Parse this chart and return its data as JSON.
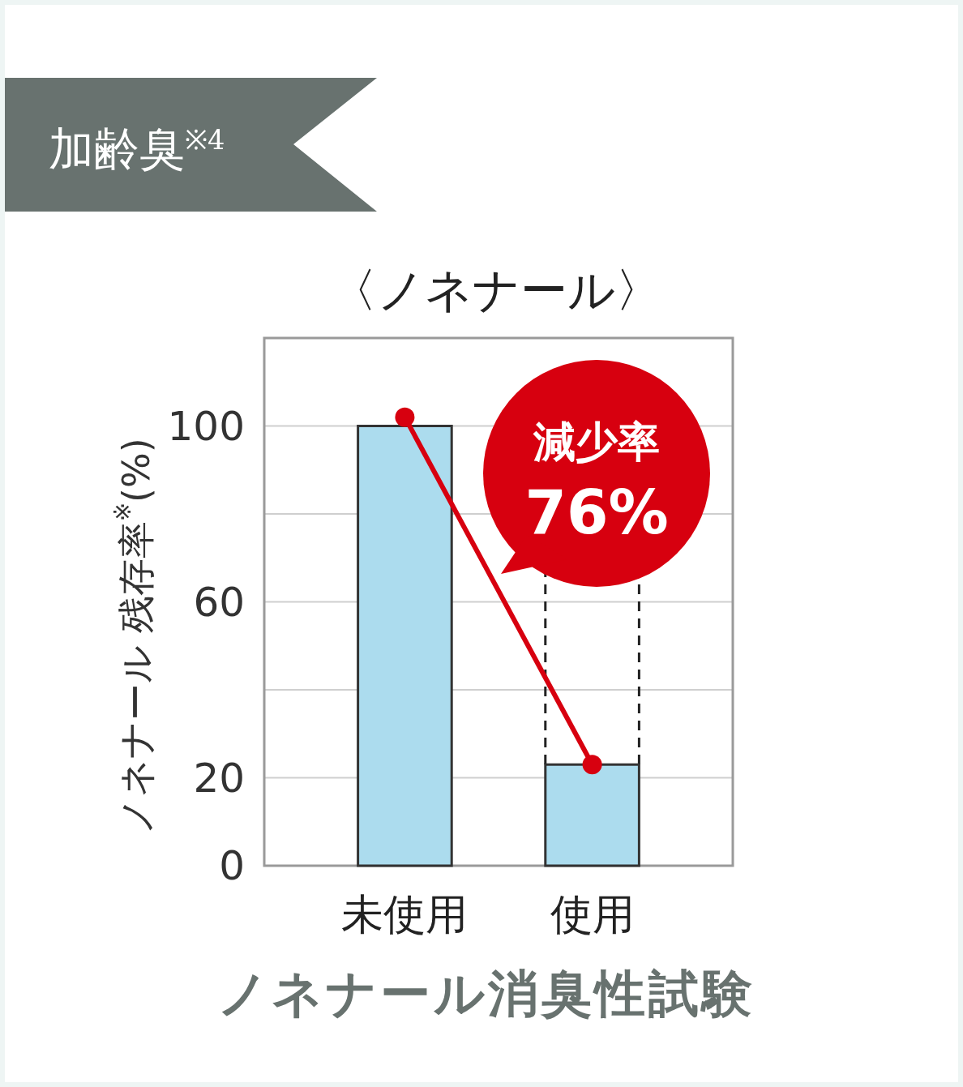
{
  "chart_data": {
    "type": "bar",
    "title": "加齢臭$^{※4}$",
    "subtitle": "〈ノネナール〉",
    "ylabel": "ノネナール 残存率$^{※}$(%)",
    "categories": [
      "未使用",
      "使用"
    ],
    "series": [
      {
        "color": "#acdcee",
        "values": [
          100,
          23
        ]
      },
      {
        "type": "line",
        "color": "#d7000f",
        "values": [
          102,
          23
        ],
        "marker": "circle"
      }
    ],
    "ylim": [
      0,
      120
    ],
    "yticks": [
      0,
      20,
      {
        "value": 40,
        "label": null
      },
      60,
      {
        "value": 80,
        "label": null
      },
      100,
      {
        "value": 120,
        "label": null
      }
    ],
    "grid": "y",
    "annotations": [
      "減少率",
      "76%",
      "ノネナール消臭性試験"
    ]
  }
}
